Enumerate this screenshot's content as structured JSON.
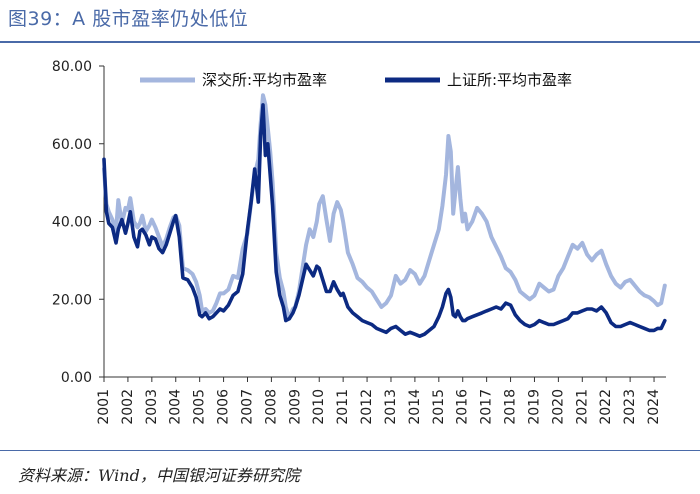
{
  "figure": {
    "title": "图39：A 股市盈率仍处低位",
    "source": "资料来源：Wind，中国银河证券研究院"
  },
  "colors": {
    "szse": "#a4b6de",
    "sse": "#0c2a82",
    "rule": "#4a6aa8"
  },
  "chart_data": {
    "type": "line",
    "title": "A 股市盈率仍处低位",
    "xlabel": "",
    "ylabel": "",
    "ylim": [
      0,
      80
    ],
    "xlim": [
      2001.0,
      2024.5
    ],
    "yticks": [
      0,
      20,
      40,
      60,
      80
    ],
    "ytick_labels": [
      "0.00",
      "20.00",
      "40.00",
      "60.00",
      "80.00"
    ],
    "xtick_labels": [
      "2001",
      "2002",
      "2003",
      "2004",
      "2005",
      "2006",
      "2007",
      "2008",
      "2009",
      "2010",
      "2011",
      "2012",
      "2013",
      "2014",
      "2015",
      "2016",
      "2017",
      "2018",
      "2019",
      "2020",
      "2021",
      "2022",
      "2023",
      "2024"
    ],
    "legend_position": "top",
    "series": [
      {
        "name": "深交所:平均市盈率",
        "x": [
          2001.0,
          2001.1,
          2001.2,
          2001.35,
          2001.5,
          2001.6,
          2001.75,
          2001.9,
          2002.0,
          2002.1,
          2002.25,
          2002.4,
          2002.5,
          2002.6,
          2002.75,
          2002.9,
          2003.0,
          2003.15,
          2003.3,
          2003.45,
          2003.6,
          2003.75,
          2003.9,
          2004.0,
          2004.15,
          2004.3,
          2004.5,
          2004.7,
          2004.85,
          2005.0,
          2005.1,
          2005.25,
          2005.4,
          2005.55,
          2005.7,
          2005.85,
          2006.0,
          2006.2,
          2006.4,
          2006.6,
          2006.8,
          2007.0,
          2007.15,
          2007.3,
          2007.45,
          2007.55,
          2007.65,
          2007.75,
          2007.85,
          2007.95,
          2008.05,
          2008.2,
          2008.35,
          2008.5,
          2008.6,
          2008.75,
          2008.9,
          2009.0,
          2009.15,
          2009.3,
          2009.45,
          2009.6,
          2009.75,
          2009.9,
          2010.0,
          2010.15,
          2010.3,
          2010.45,
          2010.6,
          2010.75,
          2010.9,
          2011.0,
          2011.2,
          2011.4,
          2011.6,
          2011.8,
          2012.0,
          2012.2,
          2012.4,
          2012.6,
          2012.8,
          2013.0,
          2013.2,
          2013.4,
          2013.6,
          2013.8,
          2014.0,
          2014.2,
          2014.4,
          2014.6,
          2014.8,
          2015.0,
          2015.15,
          2015.3,
          2015.4,
          2015.5,
          2015.6,
          2015.7,
          2015.8,
          2015.9,
          2016.0,
          2016.1,
          2016.2,
          2016.4,
          2016.6,
          2016.8,
          2017.0,
          2017.2,
          2017.4,
          2017.6,
          2017.8,
          2018.0,
          2018.2,
          2018.4,
          2018.6,
          2018.8,
          2019.0,
          2019.2,
          2019.4,
          2019.6,
          2019.8,
          2020.0,
          2020.2,
          2020.4,
          2020.6,
          2020.8,
          2021.0,
          2021.2,
          2021.4,
          2021.6,
          2021.8,
          2022.0,
          2022.2,
          2022.4,
          2022.6,
          2022.8,
          2023.0,
          2023.2,
          2023.4,
          2023.6,
          2023.8,
          2024.0,
          2024.15,
          2024.3,
          2024.45
        ],
        "values": [
          53.5,
          44.5,
          42.5,
          40.5,
          37.5,
          45.5,
          39.5,
          43.5,
          43.0,
          46.0,
          40.0,
          38.5,
          39.5,
          41.5,
          37.5,
          39.0,
          40.5,
          38.5,
          36.0,
          33.5,
          35.5,
          38.5,
          41.0,
          41.5,
          39.0,
          28.0,
          27.5,
          26.5,
          24.5,
          21.0,
          17.0,
          17.5,
          16.5,
          17.0,
          19.0,
          21.5,
          21.5,
          22.5,
          26.0,
          25.5,
          33.0,
          37.0,
          45.0,
          52.0,
          56.0,
          65.0,
          72.5,
          70.0,
          64.0,
          58.0,
          50.0,
          32.0,
          25.5,
          22.0,
          18.0,
          15.0,
          17.5,
          18.0,
          22.0,
          28.0,
          34.0,
          38.0,
          36.0,
          40.0,
          44.5,
          46.5,
          40.5,
          35.0,
          42.0,
          45.0,
          43.0,
          40.0,
          32.0,
          29.0,
          25.5,
          24.5,
          23.0,
          22.0,
          20.0,
          18.0,
          19.0,
          21.0,
          26.0,
          24.0,
          25.0,
          27.5,
          26.5,
          24.0,
          26.0,
          30.0,
          34.0,
          38.0,
          44.0,
          52.0,
          62.0,
          58.0,
          42.0,
          48.0,
          54.0,
          46.0,
          40.0,
          42.0,
          38.0,
          40.0,
          43.5,
          42.0,
          40.0,
          36.0,
          33.5,
          31.0,
          28.0,
          27.0,
          25.0,
          22.0,
          21.0,
          20.0,
          21.0,
          24.0,
          23.0,
          22.0,
          22.5,
          26.0,
          28.0,
          31.0,
          34.0,
          33.0,
          34.5,
          31.5,
          30.0,
          31.5,
          32.5,
          29.0,
          26.0,
          24.0,
          23.0,
          24.5,
          25.0,
          23.5,
          22.0,
          21.0,
          20.5,
          19.5,
          18.5,
          19.0,
          23.5
        ]
      },
      {
        "name": "上证所:平均市盈率",
        "x": [
          2001.0,
          2001.1,
          2001.2,
          2001.35,
          2001.5,
          2001.6,
          2001.75,
          2001.9,
          2002.0,
          2002.1,
          2002.25,
          2002.4,
          2002.5,
          2002.6,
          2002.75,
          2002.9,
          2003.0,
          2003.15,
          2003.3,
          2003.45,
          2003.6,
          2003.75,
          2003.9,
          2004.0,
          2004.15,
          2004.3,
          2004.5,
          2004.7,
          2004.85,
          2005.0,
          2005.1,
          2005.25,
          2005.4,
          2005.55,
          2005.7,
          2005.85,
          2006.0,
          2006.2,
          2006.4,
          2006.6,
          2006.8,
          2007.0,
          2007.15,
          2007.3,
          2007.45,
          2007.55,
          2007.65,
          2007.75,
          2007.85,
          2007.95,
          2008.05,
          2008.2,
          2008.35,
          2008.5,
          2008.6,
          2008.75,
          2008.9,
          2009.0,
          2009.15,
          2009.3,
          2009.45,
          2009.6,
          2009.75,
          2009.9,
          2010.0,
          2010.15,
          2010.3,
          2010.45,
          2010.6,
          2010.75,
          2010.9,
          2011.0,
          2011.2,
          2011.4,
          2011.6,
          2011.8,
          2012.0,
          2012.2,
          2012.4,
          2012.6,
          2012.8,
          2013.0,
          2013.2,
          2013.4,
          2013.6,
          2013.8,
          2014.0,
          2014.2,
          2014.4,
          2014.6,
          2014.8,
          2015.0,
          2015.15,
          2015.3,
          2015.4,
          2015.5,
          2015.6,
          2015.7,
          2015.8,
          2015.9,
          2016.0,
          2016.1,
          2016.2,
          2016.4,
          2016.6,
          2016.8,
          2017.0,
          2017.2,
          2017.4,
          2017.6,
          2017.8,
          2018.0,
          2018.2,
          2018.4,
          2018.6,
          2018.8,
          2019.0,
          2019.2,
          2019.4,
          2019.6,
          2019.8,
          2020.0,
          2020.2,
          2020.4,
          2020.6,
          2020.8,
          2021.0,
          2021.2,
          2021.4,
          2021.6,
          2021.8,
          2022.0,
          2022.2,
          2022.4,
          2022.6,
          2022.8,
          2023.0,
          2023.2,
          2023.4,
          2023.6,
          2023.8,
          2024.0,
          2024.15,
          2024.3,
          2024.45
        ],
        "values": [
          56.0,
          42.5,
          39.5,
          38.5,
          34.5,
          38.0,
          40.5,
          37.0,
          39.5,
          42.5,
          36.0,
          33.5,
          37.5,
          38.0,
          36.5,
          34.0,
          36.0,
          35.5,
          33.0,
          32.0,
          34.0,
          37.0,
          40.0,
          41.5,
          36.0,
          25.5,
          25.0,
          23.0,
          20.5,
          16.0,
          15.5,
          16.5,
          15.0,
          15.5,
          16.5,
          17.5,
          17.0,
          18.5,
          21.0,
          22.0,
          26.5,
          38.0,
          45.0,
          53.5,
          45.0,
          62.0,
          70.0,
          57.0,
          60.0,
          52.0,
          44.0,
          27.0,
          21.0,
          18.0,
          14.5,
          15.0,
          16.5,
          18.0,
          21.0,
          25.0,
          29.0,
          27.5,
          26.0,
          28.5,
          28.0,
          25.0,
          22.0,
          22.0,
          24.5,
          22.5,
          21.0,
          21.5,
          18.0,
          16.5,
          15.5,
          14.5,
          14.0,
          13.5,
          12.5,
          12.0,
          11.5,
          12.5,
          13.0,
          12.0,
          11.0,
          11.5,
          11.0,
          10.5,
          11.0,
          12.0,
          13.0,
          15.5,
          18.0,
          21.5,
          22.5,
          20.5,
          16.0,
          15.5,
          17.0,
          15.5,
          14.5,
          14.5,
          15.0,
          15.5,
          16.0,
          16.5,
          17.0,
          17.5,
          18.0,
          17.5,
          19.0,
          18.5,
          16.0,
          14.5,
          13.5,
          13.0,
          13.5,
          14.5,
          14.0,
          13.5,
          13.5,
          14.0,
          14.5,
          15.0,
          16.5,
          16.5,
          17.0,
          17.5,
          17.5,
          17.0,
          18.0,
          16.5,
          14.0,
          13.0,
          13.0,
          13.5,
          14.0,
          13.5,
          13.0,
          12.5,
          12.0,
          12.0,
          12.5,
          12.5,
          14.5
        ]
      }
    ]
  }
}
